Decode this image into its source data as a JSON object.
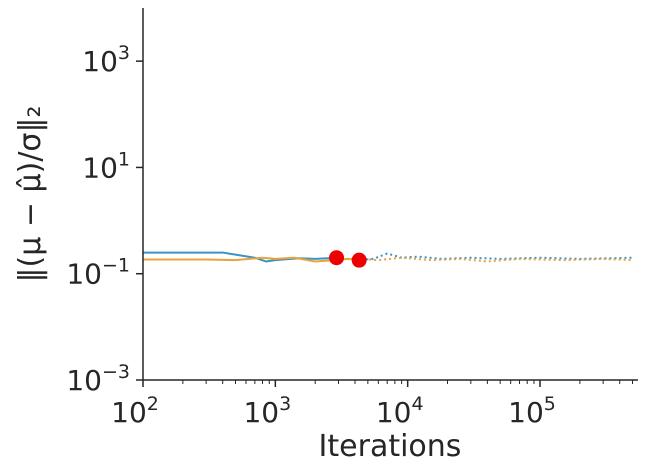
{
  "chart_data": {
    "type": "line",
    "title": "",
    "xlabel": "Iterations",
    "ylabel": "‖(μ − μ̂)/σ‖₂",
    "xscale": "log",
    "yscale": "log",
    "xlim": [
      100,
      550000
    ],
    "ylim": [
      0.001,
      10000
    ],
    "x_tick_labels": [
      {
        "base": "10",
        "exp": "2"
      },
      {
        "base": "10",
        "exp": "3"
      },
      {
        "base": "10",
        "exp": "4"
      },
      {
        "base": "10",
        "exp": "5"
      }
    ],
    "x_ticks": [
      100,
      1000,
      10000,
      100000
    ],
    "y_tick_labels": [
      {
        "base": "10",
        "exp": "−3"
      },
      {
        "base": "10",
        "exp": "−1"
      },
      {
        "base": "10",
        "exp": "1"
      },
      {
        "base": "10",
        "exp": "3"
      }
    ],
    "y_ticks": [
      0.001,
      0.1,
      10,
      1000
    ],
    "grid": false,
    "legend": "none",
    "series": [
      {
        "color": "#3a93c3",
        "style": "solid",
        "x": [
          100,
          200,
          400,
          700,
          850,
          1000,
          1500,
          2000,
          2500,
          2900
        ],
        "y": [
          0.25,
          0.25,
          0.25,
          0.2,
          0.17,
          0.18,
          0.195,
          0.19,
          0.195,
          0.2
        ]
      },
      {
        "color": "#3a93c3",
        "style": "dotted",
        "x": [
          2900,
          4000,
          5500,
          7000,
          9000,
          12000,
          18000,
          30000,
          50000,
          100000,
          200000,
          500000
        ],
        "y": [
          0.2,
          0.18,
          0.19,
          0.24,
          0.2,
          0.21,
          0.19,
          0.2,
          0.19,
          0.2,
          0.19,
          0.2
        ]
      },
      {
        "color": "#e8a33d",
        "style": "solid",
        "x": [
          100,
          300,
          500,
          800,
          1000,
          1400,
          2000,
          2800,
          3500,
          4300
        ],
        "y": [
          0.185,
          0.185,
          0.18,
          0.2,
          0.19,
          0.2,
          0.17,
          0.18,
          0.19,
          0.19
        ]
      },
      {
        "color": "#e8a33d",
        "style": "dotted",
        "x": [
          4300,
          6000,
          9000,
          15000,
          25000,
          40000,
          70000,
          150000,
          300000,
          500000
        ],
        "y": [
          0.19,
          0.18,
          0.2,
          0.18,
          0.19,
          0.17,
          0.19,
          0.18,
          0.19,
          0.18
        ]
      }
    ],
    "markers": [
      {
        "x": 2900,
        "y": 0.2,
        "color": "#ee0000"
      },
      {
        "x": 4300,
        "y": 0.18,
        "color": "#ee0000"
      }
    ]
  }
}
